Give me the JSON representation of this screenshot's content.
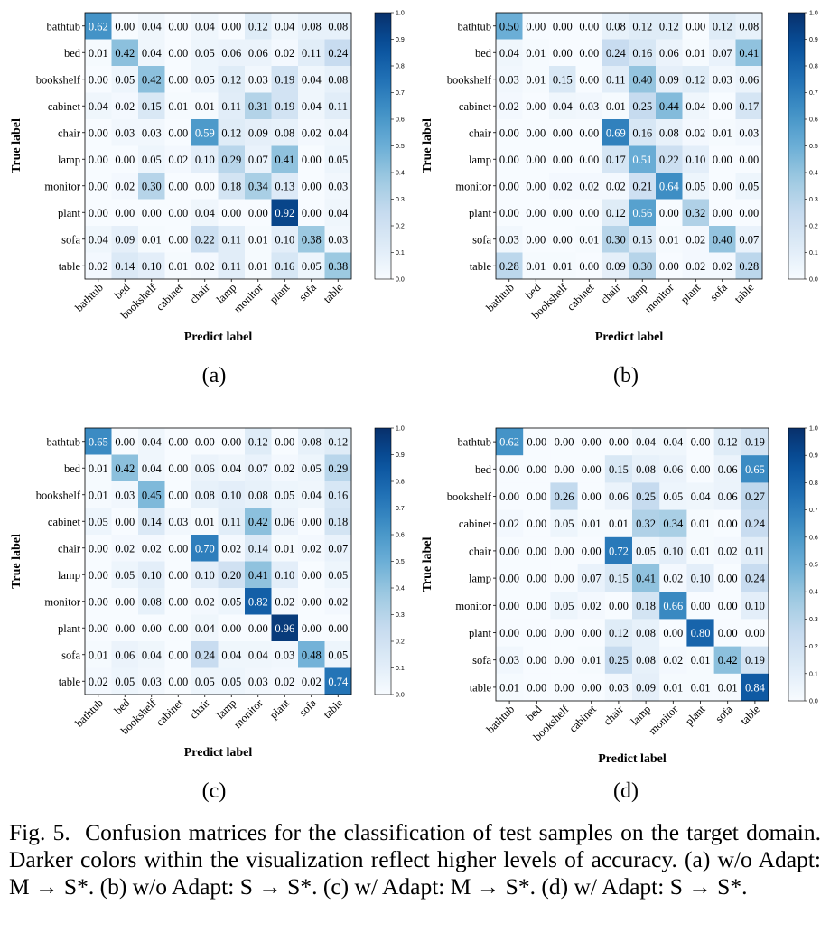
{
  "colors": {
    "low": "#f7fbff",
    "high": "#08306b",
    "text_light": "#ffffff",
    "text_dark": "#000000"
  },
  "colorbar": {
    "ticks": [
      "0.0",
      "0.1",
      "0.2",
      "0.3",
      "0.4",
      "0.5",
      "0.6",
      "0.7",
      "0.8",
      "0.9",
      "1.0"
    ]
  },
  "caption": {
    "label": "Fig. 5.",
    "text": "Confusion matrices for the classification of test samples on the target domain. Darker colors within the visualization reflect higher levels of accuracy. (a) w/o Adapt: M → S*. (b) w/o Adapt: S → S*. (c) w/ Adapt: M → S*. (d) w/ Adapt: S → S*."
  },
  "chart_data": [
    {
      "type": "heatmap",
      "panel_label": "(a)",
      "xlabel": "Predict label",
      "ylabel": "True label",
      "categories": [
        "bathtub",
        "bed",
        "bookshelf",
        "cabinet",
        "chair",
        "lamp",
        "monitor",
        "plant",
        "sofa",
        "table"
      ],
      "zlim": [
        0,
        1
      ],
      "matrix": [
        [
          0.62,
          0.0,
          0.04,
          0.0,
          0.04,
          0.0,
          0.12,
          0.04,
          0.08,
          0.08
        ],
        [
          0.01,
          0.42,
          0.04,
          0.0,
          0.05,
          0.06,
          0.06,
          0.02,
          0.11,
          0.24
        ],
        [
          0.0,
          0.05,
          0.42,
          0.0,
          0.05,
          0.12,
          0.03,
          0.19,
          0.04,
          0.08
        ],
        [
          0.04,
          0.02,
          0.15,
          0.01,
          0.01,
          0.11,
          0.31,
          0.19,
          0.04,
          0.11
        ],
        [
          0.0,
          0.03,
          0.03,
          0.0,
          0.59,
          0.12,
          0.09,
          0.08,
          0.02,
          0.04
        ],
        [
          0.0,
          0.0,
          0.05,
          0.02,
          0.1,
          0.29,
          0.07,
          0.41,
          0.0,
          0.05
        ],
        [
          0.0,
          0.02,
          0.3,
          0.0,
          0.0,
          0.18,
          0.34,
          0.13,
          0.0,
          0.03
        ],
        [
          0.0,
          0.0,
          0.0,
          0.0,
          0.04,
          0.0,
          0.0,
          0.92,
          0.0,
          0.04
        ],
        [
          0.04,
          0.09,
          0.01,
          0.0,
          0.22,
          0.11,
          0.01,
          0.1,
          0.38,
          0.03
        ],
        [
          0.02,
          0.14,
          0.1,
          0.01,
          0.02,
          0.11,
          0.01,
          0.16,
          0.05,
          0.38
        ]
      ]
    },
    {
      "type": "heatmap",
      "panel_label": "(b)",
      "xlabel": "Predict label",
      "ylabel": "True label",
      "categories": [
        "bathtub",
        "bed",
        "bookshelf",
        "cabinet",
        "chair",
        "lamp",
        "monitor",
        "plant",
        "sofa",
        "table"
      ],
      "zlim": [
        0,
        1
      ],
      "matrix": [
        [
          0.5,
          0.0,
          0.0,
          0.0,
          0.08,
          0.12,
          0.12,
          0.0,
          0.12,
          0.08
        ],
        [
          0.04,
          0.01,
          0.0,
          0.0,
          0.24,
          0.16,
          0.06,
          0.01,
          0.07,
          0.41
        ],
        [
          0.03,
          0.01,
          0.15,
          0.0,
          0.11,
          0.4,
          0.09,
          0.12,
          0.03,
          0.06
        ],
        [
          0.02,
          0.0,
          0.04,
          0.03,
          0.01,
          0.25,
          0.44,
          0.04,
          0.0,
          0.17
        ],
        [
          0.0,
          0.0,
          0.0,
          0.0,
          0.69,
          0.16,
          0.08,
          0.02,
          0.01,
          0.03
        ],
        [
          0.0,
          0.0,
          0.0,
          0.0,
          0.17,
          0.51,
          0.22,
          0.1,
          0.0,
          0.0
        ],
        [
          0.0,
          0.0,
          0.02,
          0.02,
          0.02,
          0.21,
          0.64,
          0.05,
          0.0,
          0.05
        ],
        [
          0.0,
          0.0,
          0.0,
          0.0,
          0.12,
          0.56,
          0.0,
          0.32,
          0.0,
          0.0
        ],
        [
          0.03,
          0.0,
          0.0,
          0.01,
          0.3,
          0.15,
          0.01,
          0.02,
          0.4,
          0.07
        ],
        [
          0.28,
          0.01,
          0.01,
          0.0,
          0.09,
          0.3,
          0.0,
          0.02,
          0.02,
          0.28
        ]
      ]
    },
    {
      "type": "heatmap",
      "panel_label": "(c)",
      "xlabel": "Predict label",
      "ylabel": "True label",
      "categories": [
        "bathtub",
        "bed",
        "bookshelf",
        "cabinet",
        "chair",
        "lamp",
        "monitor",
        "plant",
        "sofa",
        "table"
      ],
      "zlim": [
        0,
        1
      ],
      "matrix": [
        [
          0.65,
          0.0,
          0.04,
          0.0,
          0.0,
          0.0,
          0.12,
          0.0,
          0.08,
          0.12
        ],
        [
          0.01,
          0.42,
          0.04,
          0.0,
          0.06,
          0.04,
          0.07,
          0.02,
          0.05,
          0.29
        ],
        [
          0.01,
          0.03,
          0.45,
          0.0,
          0.08,
          0.1,
          0.08,
          0.05,
          0.04,
          0.16
        ],
        [
          0.05,
          0.0,
          0.14,
          0.03,
          0.01,
          0.11,
          0.42,
          0.06,
          0.0,
          0.18
        ],
        [
          0.0,
          0.02,
          0.02,
          0.0,
          0.7,
          0.02,
          0.14,
          0.01,
          0.02,
          0.07
        ],
        [
          0.0,
          0.05,
          0.1,
          0.0,
          0.1,
          0.2,
          0.41,
          0.1,
          0.0,
          0.05
        ],
        [
          0.0,
          0.0,
          0.08,
          0.0,
          0.02,
          0.05,
          0.82,
          0.02,
          0.0,
          0.02
        ],
        [
          0.0,
          0.0,
          0.0,
          0.0,
          0.04,
          0.0,
          0.0,
          0.96,
          0.0,
          0.0
        ],
        [
          0.01,
          0.06,
          0.04,
          0.0,
          0.24,
          0.04,
          0.04,
          0.03,
          0.48,
          0.05
        ],
        [
          0.02,
          0.05,
          0.03,
          0.0,
          0.05,
          0.05,
          0.03,
          0.02,
          0.02,
          0.74
        ]
      ]
    },
    {
      "type": "heatmap",
      "panel_label": "(d)",
      "xlabel": "Predict label",
      "ylabel": "True label",
      "categories": [
        "bathtub",
        "bed",
        "bookshelf",
        "cabinet",
        "chair",
        "lamp",
        "monitor",
        "plant",
        "sofa",
        "table"
      ],
      "zlim": [
        0,
        1
      ],
      "matrix": [
        [
          0.62,
          0.0,
          0.0,
          0.0,
          0.0,
          0.04,
          0.04,
          0.0,
          0.12,
          0.19
        ],
        [
          0.0,
          0.0,
          0.0,
          0.0,
          0.15,
          0.08,
          0.06,
          0.0,
          0.06,
          0.65
        ],
        [
          0.0,
          0.0,
          0.26,
          0.0,
          0.06,
          0.25,
          0.05,
          0.04,
          0.06,
          0.27
        ],
        [
          0.02,
          0.0,
          0.05,
          0.01,
          0.01,
          0.32,
          0.34,
          0.01,
          0.0,
          0.24
        ],
        [
          0.0,
          0.0,
          0.0,
          0.0,
          0.72,
          0.05,
          0.1,
          0.01,
          0.02,
          0.11
        ],
        [
          0.0,
          0.0,
          0.0,
          0.07,
          0.15,
          0.41,
          0.02,
          0.1,
          0.0,
          0.24
        ],
        [
          0.0,
          0.0,
          0.05,
          0.02,
          0.0,
          0.18,
          0.66,
          0.0,
          0.0,
          0.1
        ],
        [
          0.0,
          0.0,
          0.0,
          0.0,
          0.12,
          0.08,
          0.0,
          0.8,
          0.0,
          0.0
        ],
        [
          0.03,
          0.0,
          0.0,
          0.01,
          0.25,
          0.08,
          0.02,
          0.01,
          0.42,
          0.19
        ],
        [
          0.01,
          0.0,
          0.0,
          0.0,
          0.03,
          0.09,
          0.01,
          0.01,
          0.01,
          0.84
        ]
      ]
    }
  ]
}
